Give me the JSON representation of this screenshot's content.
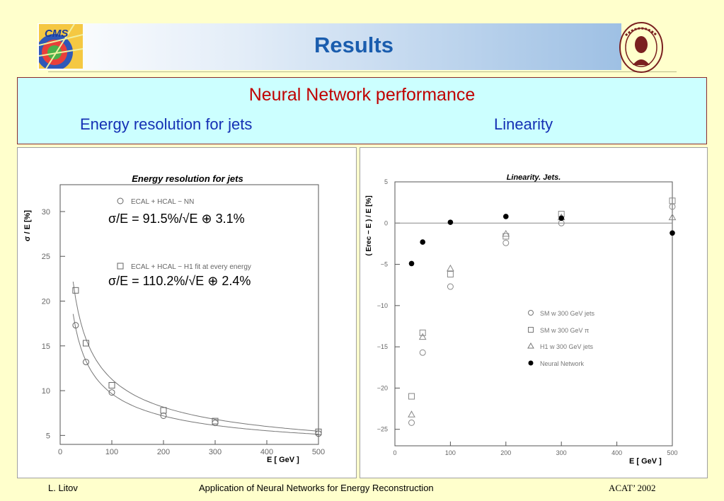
{
  "header": {
    "title": "Results",
    "left_logo": "cms-logo",
    "right_logo": "university-seal-logo"
  },
  "banner": {
    "title": "Neural Network performance",
    "left_subtitle": "Energy resolution for jets",
    "right_subtitle": "Linearity"
  },
  "footer": {
    "author": "L. Litov",
    "talk_title": "Application of Neural Networks for Energy Reconstruction",
    "conference": "ACAT’ 2002"
  },
  "colors": {
    "title": "#1a5dae",
    "banner_title": "#c00000",
    "banner_subtitle": "#1430b4",
    "banner_bg": "#ccffff",
    "page_bg": "#ffffcc"
  },
  "chart_data": [
    {
      "type": "scatter",
      "title": "Energy resolution for jets",
      "xlabel": "E   [ GeV ]",
      "ylabel": "σ / E   [%]",
      "xlim": [
        0,
        500
      ],
      "ylim": [
        4,
        33
      ],
      "xticks": [
        0,
        100,
        200,
        300,
        400,
        500
      ],
      "yticks": [
        5,
        10,
        15,
        20,
        25,
        30
      ],
      "series": [
        {
          "name": "ECAL + HCAL − NN",
          "marker": "circle",
          "x": [
            30,
            50,
            100,
            200,
            300,
            500
          ],
          "y": [
            17.3,
            13.2,
            9.8,
            7.2,
            6.4,
            5.2
          ]
        },
        {
          "name": "ECAL + HCAL − H1  fit at every energy",
          "marker": "square",
          "x": [
            30,
            50,
            100,
            200,
            300,
            500
          ],
          "y": [
            21.2,
            15.3,
            10.6,
            7.8,
            6.6,
            5.4
          ]
        }
      ],
      "fits": [
        {
          "stochastic": 91.5,
          "constant": 3.1
        },
        {
          "stochastic": 110.2,
          "constant": 2.4
        }
      ],
      "annotations": [
        "σ/E  =  91.5%/√E   ⊕   3.1%",
        "σ/E  =  110.2%/√E   ⊕   2.4%"
      ]
    },
    {
      "type": "scatter",
      "title": "Linearity. Jets.",
      "xlabel": "E   [ GeV ]",
      "ylabel": "( Erec − E ) / E   [%]",
      "xlim": [
        0,
        500
      ],
      "ylim": [
        -27,
        5
      ],
      "xticks": [
        0,
        100,
        200,
        300,
        400,
        500
      ],
      "yticks": [
        5,
        0,
        -5,
        -10,
        -15,
        -20,
        -25
      ],
      "reference_line": 0,
      "legend_position": "middle-right",
      "series": [
        {
          "name": "SM w 300 GeV jets",
          "marker": "circle",
          "x": [
            30,
            50,
            100,
            200,
            300,
            500
          ],
          "y": [
            -24.2,
            -15.7,
            -7.7,
            -2.4,
            0.0,
            2.0
          ]
        },
        {
          "name": "SM w 300 GeV π",
          "marker": "square",
          "x": [
            30,
            50,
            100,
            200,
            300,
            500
          ],
          "y": [
            -21.0,
            -13.3,
            -6.2,
            -1.6,
            1.1,
            2.7
          ]
        },
        {
          "name": "H1 w 300 GeV jets",
          "marker": "triangle",
          "x": [
            30,
            50,
            100,
            200,
            300,
            500
          ],
          "y": [
            -23.2,
            -13.8,
            -5.5,
            -1.3,
            0.7,
            0.7
          ]
        },
        {
          "name": "Neural Network",
          "marker": "filled-circle",
          "x": [
            30,
            50,
            100,
            200,
            300,
            500
          ],
          "y": [
            -4.9,
            -2.3,
            0.1,
            0.8,
            0.6,
            -1.2
          ]
        }
      ]
    }
  ]
}
